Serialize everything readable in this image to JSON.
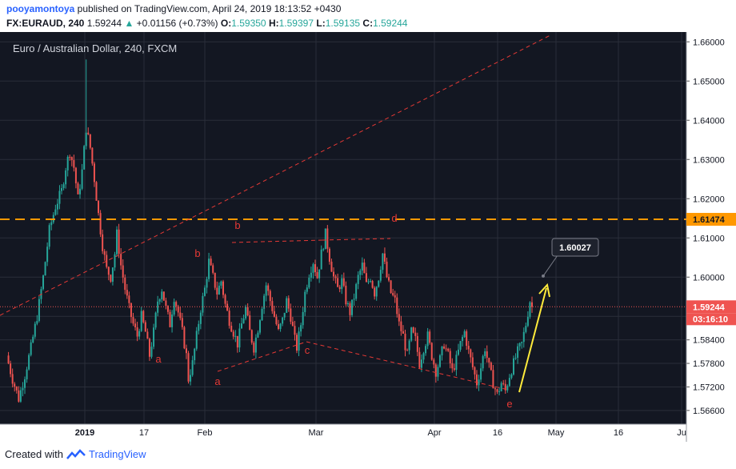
{
  "header": {
    "author": "pooyamontoya",
    "published_text": " published on TradingView.com, April 24, 2019 18:13:52 +0430",
    "symbol": "FX:EURAUD, 240",
    "last": "1.59244",
    "change": "+0.01156 (+0.73%)",
    "o_label": "O:",
    "o": "1.59350",
    "h_label": "H:",
    "h": "1.59397",
    "l_label": "L:",
    "l": "1.59135",
    "c_label": "C:",
    "c": "1.59244"
  },
  "footer": {
    "created_with": "Created with",
    "brand": "TradingView"
  },
  "colors": {
    "up": "#26a69a",
    "down": "#ef5350",
    "orange": "#ff9800",
    "red_dash": "#e53935",
    "yellow": "#ffeb3b",
    "bg": "#131722",
    "grid": "#2a2e39"
  },
  "chart_data": {
    "type": "candlestick",
    "title": "Euro / Australian Dollar, 240, FXCM",
    "ylim": [
      1.5625,
      1.6625
    ],
    "y_ticks": [
      "1.66000",
      "1.65000",
      "1.64000",
      "1.63000",
      "1.62000",
      "1.61000",
      "1.60000",
      "1.59000",
      "1.58400",
      "1.57800",
      "1.57200",
      "1.56600"
    ],
    "x_tick_labels": [
      "2019",
      "17",
      "Feb",
      "Mar",
      "Apr",
      "16",
      "May",
      "16",
      "Ju"
    ],
    "price_labels": [
      {
        "value": 1.61474,
        "text": "1.61474"
      },
      {
        "value": 1.59244,
        "text": "1.59244"
      }
    ],
    "countdown": "03:16:10",
    "callout": {
      "text": "1.60027",
      "value": 1.60027
    },
    "horizontal_level": 1.61474,
    "wave_labels": [
      "a",
      "b",
      "a",
      "b",
      "c",
      "d",
      "e"
    ],
    "price_path": [
      [
        0,
        1.58
      ],
      [
        3,
        1.574
      ],
      [
        6,
        1.569
      ],
      [
        9,
        1.575
      ],
      [
        12,
        1.582
      ],
      [
        15,
        1.59
      ],
      [
        18,
        1.6
      ],
      [
        21,
        1.612
      ],
      [
        24,
        1.618
      ],
      [
        27,
        1.622
      ],
      [
        29,
        1.628
      ],
      [
        31,
        1.632
      ],
      [
        33,
        1.628
      ],
      [
        35,
        1.62
      ],
      [
        37,
        1.627
      ],
      [
        39,
        1.638
      ],
      [
        41,
        1.633
      ],
      [
        43,
        1.625
      ],
      [
        45,
        1.616
      ],
      [
        47,
        1.608
      ],
      [
        49,
        1.602
      ],
      [
        51,
        1.6
      ],
      [
        53,
        1.606
      ],
      [
        54,
        1.611
      ],
      [
        56,
        1.603
      ],
      [
        58,
        1.597
      ],
      [
        60,
        1.592
      ],
      [
        62,
        1.588
      ],
      [
        64,
        1.585
      ],
      [
        66,
        1.59
      ],
      [
        68,
        1.586
      ],
      [
        70,
        1.58
      ],
      [
        72,
        1.586
      ],
      [
        74,
        1.594
      ],
      [
        76,
        1.597
      ],
      [
        78,
        1.592
      ],
      [
        80,
        1.588
      ],
      [
        82,
        1.595
      ],
      [
        84,
        1.591
      ],
      [
        86,
        1.586
      ],
      [
        88,
        1.58
      ],
      [
        89,
        1.574
      ],
      [
        91,
        1.578
      ],
      [
        93,
        1.585
      ],
      [
        95,
        1.592
      ],
      [
        97,
        1.597
      ],
      [
        99,
        1.604
      ],
      [
        101,
        1.6
      ],
      [
        103,
        1.596
      ],
      [
        105,
        1.599
      ],
      [
        107,
        1.593
      ],
      [
        109,
        1.589
      ],
      [
        111,
        1.586
      ],
      [
        113,
        1.583
      ],
      [
        115,
        1.588
      ],
      [
        117,
        1.592
      ],
      [
        119,
        1.586
      ],
      [
        121,
        1.582
      ],
      [
        123,
        1.587
      ],
      [
        125,
        1.593
      ],
      [
        127,
        1.598
      ],
      [
        129,
        1.594
      ],
      [
        131,
        1.59
      ],
      [
        133,
        1.586
      ],
      [
        135,
        1.589
      ],
      [
        137,
        1.594
      ],
      [
        139,
        1.59
      ],
      [
        141,
        1.584
      ],
      [
        142,
        1.582
      ],
      [
        144,
        1.588
      ],
      [
        146,
        1.596
      ],
      [
        148,
        1.601
      ],
      [
        150,
        1.604
      ],
      [
        152,
        1.6
      ],
      [
        154,
        1.606
      ],
      [
        156,
        1.611
      ],
      [
        158,
        1.605
      ],
      [
        160,
        1.6
      ],
      [
        162,
        1.597
      ],
      [
        164,
        1.599
      ],
      [
        166,
        1.594
      ],
      [
        168,
        1.591
      ],
      [
        170,
        1.595
      ],
      [
        172,
        1.6
      ],
      [
        174,
        1.603
      ],
      [
        176,
        1.598
      ],
      [
        178,
        1.6
      ],
      [
        180,
        1.596
      ],
      [
        182,
        1.6
      ],
      [
        184,
        1.606
      ],
      [
        186,
        1.6
      ],
      [
        188,
        1.596
      ],
      [
        190,
        1.594
      ],
      [
        192,
        1.588
      ],
      [
        194,
        1.585
      ],
      [
        196,
        1.58
      ],
      [
        198,
        1.586
      ],
      [
        200,
        1.584
      ],
      [
        202,
        1.578
      ],
      [
        204,
        1.582
      ],
      [
        206,
        1.585
      ],
      [
        208,
        1.58
      ],
      [
        210,
        1.576
      ],
      [
        212,
        1.579
      ],
      [
        214,
        1.583
      ],
      [
        216,
        1.58
      ],
      [
        218,
        1.576
      ],
      [
        220,
        1.579
      ],
      [
        222,
        1.583
      ],
      [
        224,
        1.586
      ],
      [
        226,
        1.581
      ],
      [
        228,
        1.577
      ],
      [
        230,
        1.573
      ],
      [
        232,
        1.577
      ],
      [
        234,
        1.582
      ],
      [
        236,
        1.577
      ],
      [
        238,
        1.573
      ],
      [
        240,
        1.57
      ],
      [
        242,
        1.573
      ],
      [
        244,
        1.571
      ],
      [
        246,
        1.575
      ],
      [
        248,
        1.578
      ],
      [
        250,
        1.581
      ],
      [
        252,
        1.583
      ],
      [
        254,
        1.588
      ],
      [
        256,
        1.594
      ],
      [
        257,
        1.5924
      ]
    ]
  }
}
